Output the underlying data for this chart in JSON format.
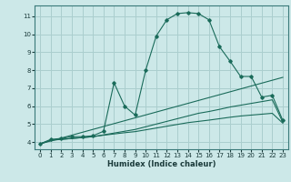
{
  "title": "",
  "xlabel": "Humidex (Indice chaleur)",
  "ylabel": "",
  "bg_color": "#cce8e8",
  "grid_color": "#aacece",
  "line_color": "#1a6b5a",
  "xlim": [
    -0.5,
    23.5
  ],
  "ylim": [
    3.6,
    11.6
  ],
  "xticks": [
    0,
    1,
    2,
    3,
    4,
    5,
    6,
    7,
    8,
    9,
    10,
    11,
    12,
    13,
    14,
    15,
    16,
    17,
    18,
    19,
    20,
    21,
    22,
    23
  ],
  "yticks": [
    4,
    5,
    6,
    7,
    8,
    9,
    10,
    11
  ],
  "series": [
    {
      "x": [
        0,
        1,
        2,
        3,
        4,
        5,
        6,
        7,
        8,
        9,
        10,
        11,
        12,
        13,
        14,
        15,
        16,
        17,
        18,
        19,
        20,
        21,
        22,
        23
      ],
      "y": [
        3.9,
        4.15,
        4.2,
        4.3,
        4.3,
        4.35,
        4.6,
        7.3,
        6.0,
        5.5,
        8.0,
        9.9,
        10.8,
        11.15,
        11.2,
        11.15,
        10.8,
        9.3,
        8.5,
        7.65,
        7.65,
        6.5,
        6.6,
        5.2
      ],
      "marker": true
    },
    {
      "x": [
        0,
        23
      ],
      "y": [
        3.9,
        7.6
      ],
      "marker": false
    },
    {
      "x": [
        0,
        1,
        2,
        3,
        4,
        5,
        6,
        7,
        8,
        9,
        10,
        11,
        12,
        13,
        14,
        15,
        16,
        17,
        18,
        19,
        20,
        21,
        22,
        23
      ],
      "y": [
        3.9,
        4.1,
        4.15,
        4.2,
        4.25,
        4.3,
        4.4,
        4.5,
        4.6,
        4.7,
        4.85,
        5.0,
        5.15,
        5.3,
        5.45,
        5.6,
        5.7,
        5.82,
        5.95,
        6.05,
        6.15,
        6.25,
        6.35,
        5.1
      ],
      "marker": false
    },
    {
      "x": [
        0,
        1,
        2,
        3,
        4,
        5,
        6,
        7,
        8,
        9,
        10,
        11,
        12,
        13,
        14,
        15,
        16,
        17,
        18,
        19,
        20,
        21,
        22,
        23
      ],
      "y": [
        3.9,
        4.1,
        4.15,
        4.2,
        4.25,
        4.3,
        4.38,
        4.45,
        4.52,
        4.58,
        4.68,
        4.78,
        4.88,
        4.98,
        5.08,
        5.15,
        5.22,
        5.3,
        5.38,
        5.45,
        5.5,
        5.55,
        5.6,
        5.05
      ],
      "marker": false
    }
  ]
}
